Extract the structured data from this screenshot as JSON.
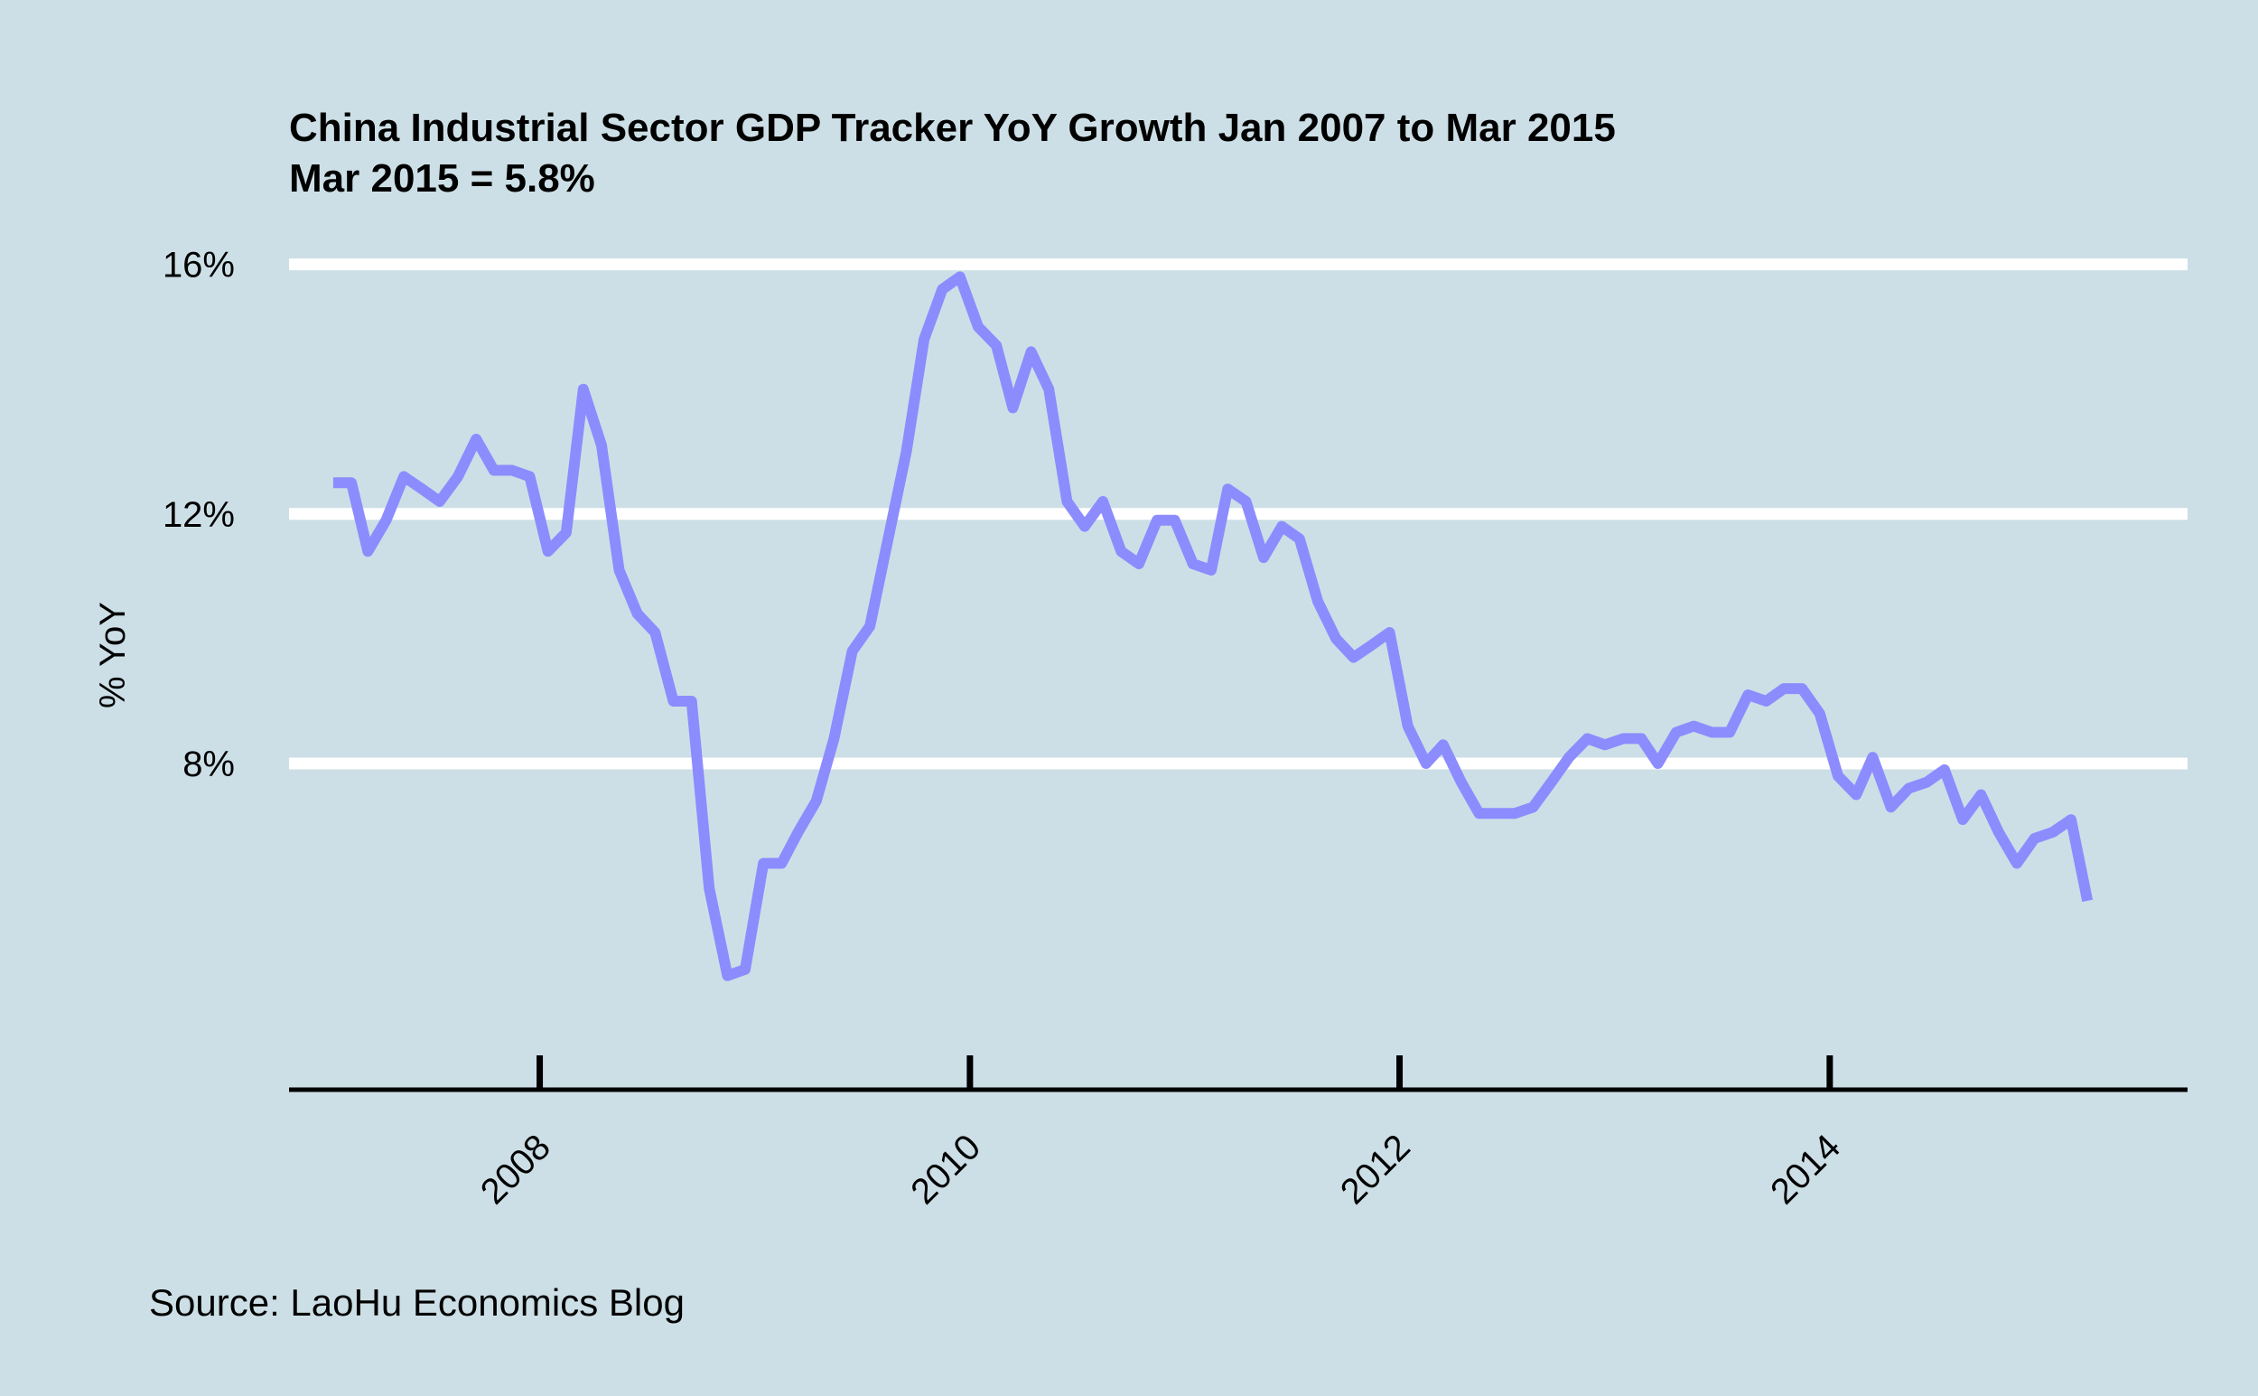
{
  "chart_data": {
    "type": "line",
    "title": "China Industrial Sector GDP Tracker YoY Growth Jan 2007 to Mar 2015",
    "subtitle": "Mar 2015 = 5.8%",
    "ylabel": "% YoY",
    "xlabel": "",
    "caption": "Source: LaoHu Economics Blog",
    "ylim": [
      3.8,
      16.4
    ],
    "xlim": [
      "2006-11-01",
      "2015-09-01"
    ],
    "y_ticks": [
      8,
      12,
      16
    ],
    "y_tick_labels": [
      "8%",
      "12%",
      "16%"
    ],
    "x_ticks": [
      "2008-01-01",
      "2010-01-01",
      "2012-01-01",
      "2014-01-01"
    ],
    "x_tick_labels": [
      "2008",
      "2010",
      "2012",
      "2014"
    ],
    "grid": "horizontal",
    "line_color": "#8c8cff",
    "grid_color": "#ffffff",
    "background_color": "#cddfe6",
    "series": [
      {
        "points": [
          [
            "2007-01",
            12.5
          ],
          [
            "2007-02",
            12.5
          ],
          [
            "2007-03",
            11.4
          ],
          [
            "2007-04",
            11.9
          ],
          [
            "2007-05",
            12.6
          ],
          [
            "2007-06",
            12.4
          ],
          [
            "2007-07",
            12.2
          ],
          [
            "2007-08",
            12.6
          ],
          [
            "2007-09",
            13.2
          ],
          [
            "2007-10",
            12.7
          ],
          [
            "2007-11",
            12.7
          ],
          [
            "2007-12",
            12.6
          ],
          [
            "2008-01",
            11.4
          ],
          [
            "2008-02",
            11.7
          ],
          [
            "2008-03",
            14.0
          ],
          [
            "2008-04",
            13.1
          ],
          [
            "2008-05",
            11.1
          ],
          [
            "2008-06",
            10.4
          ],
          [
            "2008-07",
            10.1
          ],
          [
            "2008-08",
            9.0
          ],
          [
            "2008-09",
            9.0
          ],
          [
            "2008-10",
            6.0
          ],
          [
            "2008-11",
            4.6
          ],
          [
            "2008-12",
            4.7
          ],
          [
            "2009-01",
            6.4
          ],
          [
            "2009-02",
            6.4
          ],
          [
            "2009-03",
            6.9
          ],
          [
            "2009-04",
            7.4
          ],
          [
            "2009-05",
            8.4
          ],
          [
            "2009-06",
            9.8
          ],
          [
            "2009-07",
            10.2
          ],
          [
            "2009-08",
            11.6
          ],
          [
            "2009-09",
            13.0
          ],
          [
            "2009-10",
            14.8
          ],
          [
            "2009-11",
            15.6
          ],
          [
            "2009-12",
            15.8
          ],
          [
            "2010-01",
            15.0
          ],
          [
            "2010-02",
            14.7
          ],
          [
            "2010-03",
            13.7
          ],
          [
            "2010-04",
            14.6
          ],
          [
            "2010-05",
            14.0
          ],
          [
            "2010-06",
            12.2
          ],
          [
            "2010-07",
            11.8
          ],
          [
            "2010-08",
            12.2
          ],
          [
            "2010-09",
            11.4
          ],
          [
            "2010-10",
            11.2
          ],
          [
            "2010-11",
            11.9
          ],
          [
            "2010-12",
            11.9
          ],
          [
            "2011-01",
            11.2
          ],
          [
            "2011-02",
            11.1
          ],
          [
            "2011-03",
            12.4
          ],
          [
            "2011-04",
            12.2
          ],
          [
            "2011-05",
            11.3
          ],
          [
            "2011-06",
            11.8
          ],
          [
            "2011-07",
            11.6
          ],
          [
            "2011-08",
            10.6
          ],
          [
            "2011-09",
            10.0
          ],
          [
            "2011-10",
            9.7
          ],
          [
            "2011-11",
            9.9
          ],
          [
            "2011-12",
            10.1
          ],
          [
            "2012-01",
            8.6
          ],
          [
            "2012-02",
            8.0
          ],
          [
            "2012-03",
            8.3
          ],
          [
            "2012-04",
            7.7
          ],
          [
            "2012-05",
            7.2
          ],
          [
            "2012-06",
            7.2
          ],
          [
            "2012-07",
            7.2
          ],
          [
            "2012-08",
            7.3
          ],
          [
            "2012-09",
            7.7
          ],
          [
            "2012-10",
            8.1
          ],
          [
            "2012-11",
            8.4
          ],
          [
            "2012-12",
            8.3
          ],
          [
            "2013-01",
            8.4
          ],
          [
            "2013-02",
            8.4
          ],
          [
            "2013-03",
            8.0
          ],
          [
            "2013-04",
            8.5
          ],
          [
            "2013-05",
            8.6
          ],
          [
            "2013-06",
            8.5
          ],
          [
            "2013-07",
            8.5
          ],
          [
            "2013-08",
            9.1
          ],
          [
            "2013-09",
            9.0
          ],
          [
            "2013-10",
            9.2
          ],
          [
            "2013-11",
            9.2
          ],
          [
            "2013-12",
            8.8
          ],
          [
            "2014-01",
            7.8
          ],
          [
            "2014-02",
            7.5
          ],
          [
            "2014-03",
            8.1
          ],
          [
            "2014-04",
            7.3
          ],
          [
            "2014-05",
            7.6
          ],
          [
            "2014-06",
            7.7
          ],
          [
            "2014-07",
            7.9
          ],
          [
            "2014-08",
            7.1
          ],
          [
            "2014-09",
            7.5
          ],
          [
            "2014-10",
            6.9
          ],
          [
            "2014-11",
            6.4
          ],
          [
            "2014-12",
            6.8
          ],
          [
            "2015-01",
            6.9
          ],
          [
            "2015-02",
            7.1
          ],
          [
            "2015-03",
            5.8
          ]
        ]
      }
    ]
  }
}
